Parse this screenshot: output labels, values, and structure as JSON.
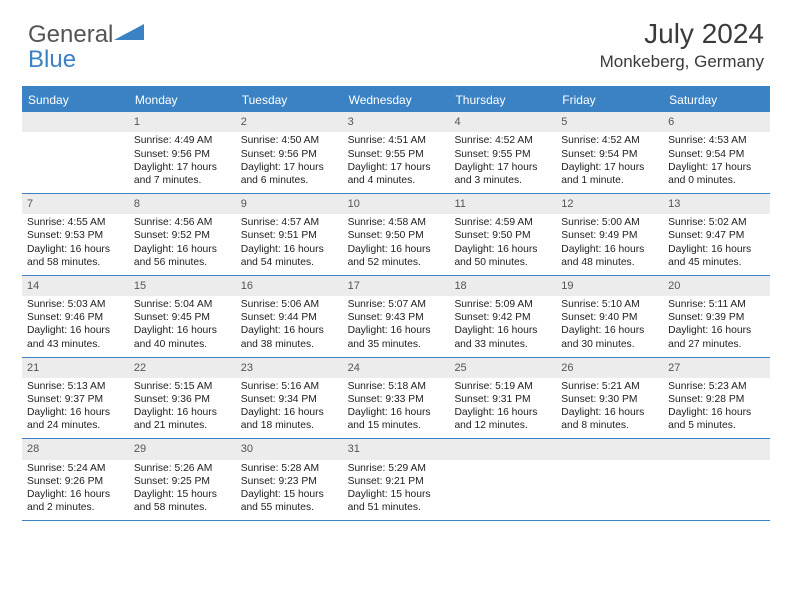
{
  "logo": {
    "part1": "General",
    "part2": "Blue"
  },
  "title": "July 2024",
  "location": "Monkeberg, Germany",
  "colors": {
    "accent": "#3a82c4",
    "header_bg": "#3a82c4",
    "header_text": "#ffffff",
    "daynum_bg": "#ececec",
    "daynum_text": "#555555",
    "body_text": "#212121",
    "page_bg": "#ffffff"
  },
  "dow": [
    "Sunday",
    "Monday",
    "Tuesday",
    "Wednesday",
    "Thursday",
    "Friday",
    "Saturday"
  ],
  "weeks": [
    [
      {
        "num": "",
        "sunrise": "",
        "sunset": "",
        "daylight": ""
      },
      {
        "num": "1",
        "sunrise": "Sunrise: 4:49 AM",
        "sunset": "Sunset: 9:56 PM",
        "daylight": "Daylight: 17 hours and 7 minutes."
      },
      {
        "num": "2",
        "sunrise": "Sunrise: 4:50 AM",
        "sunset": "Sunset: 9:56 PM",
        "daylight": "Daylight: 17 hours and 6 minutes."
      },
      {
        "num": "3",
        "sunrise": "Sunrise: 4:51 AM",
        "sunset": "Sunset: 9:55 PM",
        "daylight": "Daylight: 17 hours and 4 minutes."
      },
      {
        "num": "4",
        "sunrise": "Sunrise: 4:52 AM",
        "sunset": "Sunset: 9:55 PM",
        "daylight": "Daylight: 17 hours and 3 minutes."
      },
      {
        "num": "5",
        "sunrise": "Sunrise: 4:52 AM",
        "sunset": "Sunset: 9:54 PM",
        "daylight": "Daylight: 17 hours and 1 minute."
      },
      {
        "num": "6",
        "sunrise": "Sunrise: 4:53 AM",
        "sunset": "Sunset: 9:54 PM",
        "daylight": "Daylight: 17 hours and 0 minutes."
      }
    ],
    [
      {
        "num": "7",
        "sunrise": "Sunrise: 4:55 AM",
        "sunset": "Sunset: 9:53 PM",
        "daylight": "Daylight: 16 hours and 58 minutes."
      },
      {
        "num": "8",
        "sunrise": "Sunrise: 4:56 AM",
        "sunset": "Sunset: 9:52 PM",
        "daylight": "Daylight: 16 hours and 56 minutes."
      },
      {
        "num": "9",
        "sunrise": "Sunrise: 4:57 AM",
        "sunset": "Sunset: 9:51 PM",
        "daylight": "Daylight: 16 hours and 54 minutes."
      },
      {
        "num": "10",
        "sunrise": "Sunrise: 4:58 AM",
        "sunset": "Sunset: 9:50 PM",
        "daylight": "Daylight: 16 hours and 52 minutes."
      },
      {
        "num": "11",
        "sunrise": "Sunrise: 4:59 AM",
        "sunset": "Sunset: 9:50 PM",
        "daylight": "Daylight: 16 hours and 50 minutes."
      },
      {
        "num": "12",
        "sunrise": "Sunrise: 5:00 AM",
        "sunset": "Sunset: 9:49 PM",
        "daylight": "Daylight: 16 hours and 48 minutes."
      },
      {
        "num": "13",
        "sunrise": "Sunrise: 5:02 AM",
        "sunset": "Sunset: 9:47 PM",
        "daylight": "Daylight: 16 hours and 45 minutes."
      }
    ],
    [
      {
        "num": "14",
        "sunrise": "Sunrise: 5:03 AM",
        "sunset": "Sunset: 9:46 PM",
        "daylight": "Daylight: 16 hours and 43 minutes."
      },
      {
        "num": "15",
        "sunrise": "Sunrise: 5:04 AM",
        "sunset": "Sunset: 9:45 PM",
        "daylight": "Daylight: 16 hours and 40 minutes."
      },
      {
        "num": "16",
        "sunrise": "Sunrise: 5:06 AM",
        "sunset": "Sunset: 9:44 PM",
        "daylight": "Daylight: 16 hours and 38 minutes."
      },
      {
        "num": "17",
        "sunrise": "Sunrise: 5:07 AM",
        "sunset": "Sunset: 9:43 PM",
        "daylight": "Daylight: 16 hours and 35 minutes."
      },
      {
        "num": "18",
        "sunrise": "Sunrise: 5:09 AM",
        "sunset": "Sunset: 9:42 PM",
        "daylight": "Daylight: 16 hours and 33 minutes."
      },
      {
        "num": "19",
        "sunrise": "Sunrise: 5:10 AM",
        "sunset": "Sunset: 9:40 PM",
        "daylight": "Daylight: 16 hours and 30 minutes."
      },
      {
        "num": "20",
        "sunrise": "Sunrise: 5:11 AM",
        "sunset": "Sunset: 9:39 PM",
        "daylight": "Daylight: 16 hours and 27 minutes."
      }
    ],
    [
      {
        "num": "21",
        "sunrise": "Sunrise: 5:13 AM",
        "sunset": "Sunset: 9:37 PM",
        "daylight": "Daylight: 16 hours and 24 minutes."
      },
      {
        "num": "22",
        "sunrise": "Sunrise: 5:15 AM",
        "sunset": "Sunset: 9:36 PM",
        "daylight": "Daylight: 16 hours and 21 minutes."
      },
      {
        "num": "23",
        "sunrise": "Sunrise: 5:16 AM",
        "sunset": "Sunset: 9:34 PM",
        "daylight": "Daylight: 16 hours and 18 minutes."
      },
      {
        "num": "24",
        "sunrise": "Sunrise: 5:18 AM",
        "sunset": "Sunset: 9:33 PM",
        "daylight": "Daylight: 16 hours and 15 minutes."
      },
      {
        "num": "25",
        "sunrise": "Sunrise: 5:19 AM",
        "sunset": "Sunset: 9:31 PM",
        "daylight": "Daylight: 16 hours and 12 minutes."
      },
      {
        "num": "26",
        "sunrise": "Sunrise: 5:21 AM",
        "sunset": "Sunset: 9:30 PM",
        "daylight": "Daylight: 16 hours and 8 minutes."
      },
      {
        "num": "27",
        "sunrise": "Sunrise: 5:23 AM",
        "sunset": "Sunset: 9:28 PM",
        "daylight": "Daylight: 16 hours and 5 minutes."
      }
    ],
    [
      {
        "num": "28",
        "sunrise": "Sunrise: 5:24 AM",
        "sunset": "Sunset: 9:26 PM",
        "daylight": "Daylight: 16 hours and 2 minutes."
      },
      {
        "num": "29",
        "sunrise": "Sunrise: 5:26 AM",
        "sunset": "Sunset: 9:25 PM",
        "daylight": "Daylight: 15 hours and 58 minutes."
      },
      {
        "num": "30",
        "sunrise": "Sunrise: 5:28 AM",
        "sunset": "Sunset: 9:23 PM",
        "daylight": "Daylight: 15 hours and 55 minutes."
      },
      {
        "num": "31",
        "sunrise": "Sunrise: 5:29 AM",
        "sunset": "Sunset: 9:21 PM",
        "daylight": "Daylight: 15 hours and 51 minutes."
      },
      {
        "num": "",
        "sunrise": "",
        "sunset": "",
        "daylight": ""
      },
      {
        "num": "",
        "sunrise": "",
        "sunset": "",
        "daylight": ""
      },
      {
        "num": "",
        "sunrise": "",
        "sunset": "",
        "daylight": ""
      }
    ]
  ]
}
